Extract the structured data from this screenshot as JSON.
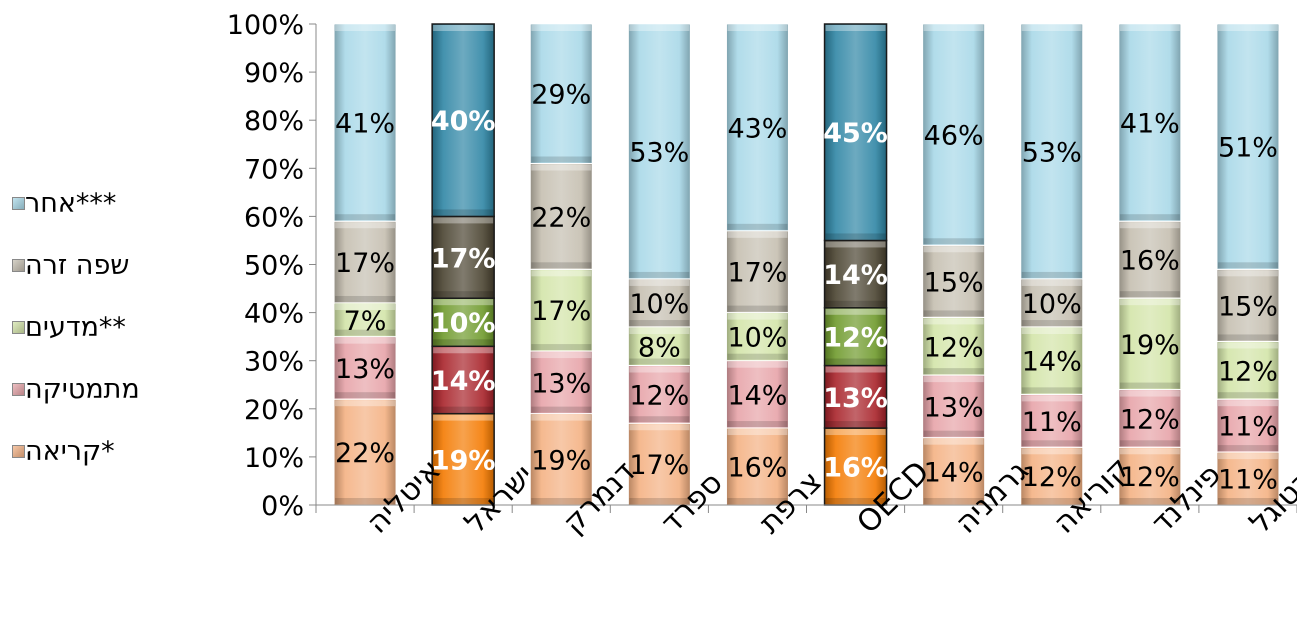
{
  "chart_data": {
    "type": "bar",
    "stacked": true,
    "percent_stacked": true,
    "categories": [
      "איטליה",
      "ישראל",
      "דנמרק",
      "ספרד",
      "צרפת",
      "OECD",
      "גרמניה",
      "קוריאה",
      "פינלנד",
      "פורטוגל"
    ],
    "highlighted_categories": [
      "ישראל",
      "OECD"
    ],
    "series": [
      {
        "name": "*קריאה",
        "values": [
          22,
          19,
          19,
          17,
          16,
          16,
          14,
          12,
          12,
          11
        ],
        "color": "#f4b183",
        "highlight_color": "#f47a00"
      },
      {
        "name": "מתמטיקה",
        "values": [
          13,
          14,
          13,
          12,
          14,
          13,
          13,
          11,
          12,
          11
        ],
        "color": "#e6a3a8",
        "highlight_color": "#a8232a"
      },
      {
        "name": "**מדעים",
        "values": [
          7,
          10,
          17,
          8,
          10,
          12,
          12,
          14,
          19,
          12
        ],
        "color": "#d3e4a8",
        "highlight_color": "#6e9a2c"
      },
      {
        "name": "שפה זרה",
        "values": [
          17,
          17,
          22,
          10,
          17,
          14,
          15,
          10,
          16,
          15
        ],
        "color": "#c5beb0",
        "highlight_color": "#4a4330"
      },
      {
        "name": "***אחר",
        "values": [
          41,
          40,
          29,
          53,
          43,
          45,
          46,
          53,
          41,
          51
        ],
        "color": "#a8d8e8",
        "highlight_color": "#2f86a5"
      }
    ],
    "data_labels": [
      [
        "22%",
        "19%",
        "19%",
        "17%",
        "16%",
        "16%",
        "14%",
        "12%",
        "12%",
        "11%"
      ],
      [
        "13%",
        "14%",
        "13%",
        "12%",
        "14%",
        "13%",
        "13%",
        "11%",
        "12%",
        "11%"
      ],
      [
        "7%",
        "10%",
        "17%",
        "8%",
        "10%",
        "12%",
        "12%",
        "14%",
        "19%",
        "12%"
      ],
      [
        "17%",
        "17%",
        "22%",
        "10%",
        "17%",
        "14%",
        "15%",
        "10%",
        "16%",
        "15%"
      ],
      [
        "41%",
        "40%",
        "29%",
        "53%",
        "43%",
        "45%",
        "46%",
        "53%",
        "41%",
        "51%"
      ]
    ],
    "y_ticks": [
      "0%",
      "10%",
      "20%",
      "30%",
      "40%",
      "50%",
      "60%",
      "70%",
      "80%",
      "90%",
      "100%"
    ],
    "ylim": [
      0,
      100
    ],
    "grid": false,
    "legend_position": "left",
    "legend_order": [
      "***אחר",
      "שפה זרה",
      "**מדעים",
      "מתמטיקה",
      "*קריאה"
    ],
    "title": "",
    "xlabel": "",
    "ylabel": ""
  }
}
